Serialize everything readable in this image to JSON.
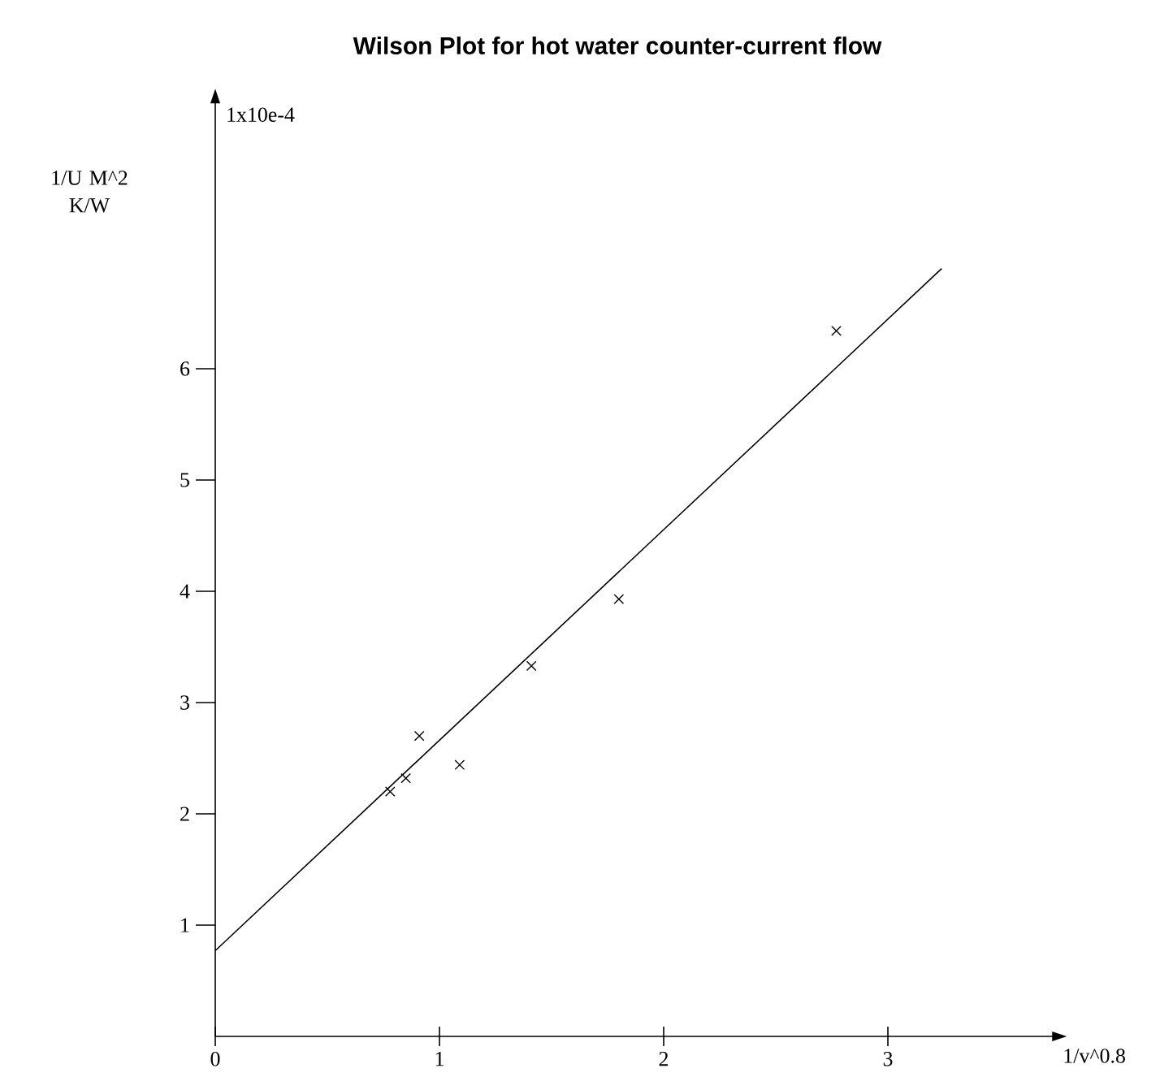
{
  "chart_data": {
    "type": "scatter",
    "title": "Wilson Plot for hot water counter-current flow",
    "xlabel": "1/v^0.8",
    "ylabel": "1/U M^2 K/W",
    "annotations": [
      "1x10e-4"
    ],
    "xlim": [
      0,
      3.74
    ],
    "ylim": [
      0,
      8.4
    ],
    "xticks": [
      0,
      1,
      2,
      3
    ],
    "yticks": [
      1,
      2,
      3,
      4,
      5,
      6
    ],
    "grid": false,
    "series": [
      {
        "marker": "cross",
        "color": "#000000",
        "x": [
          0.78,
          0.85,
          0.91,
          1.09,
          1.41,
          1.8,
          2.77
        ],
        "values": [
          2.2,
          2.32,
          2.7,
          2.44,
          3.33,
          3.93,
          6.34
        ]
      },
      {
        "type": "line",
        "marker": "none",
        "color": "#000000",
        "line_style": "solid",
        "x": [
          0,
          3.24
        ],
        "values": [
          0.77,
          6.9
        ]
      }
    ]
  }
}
